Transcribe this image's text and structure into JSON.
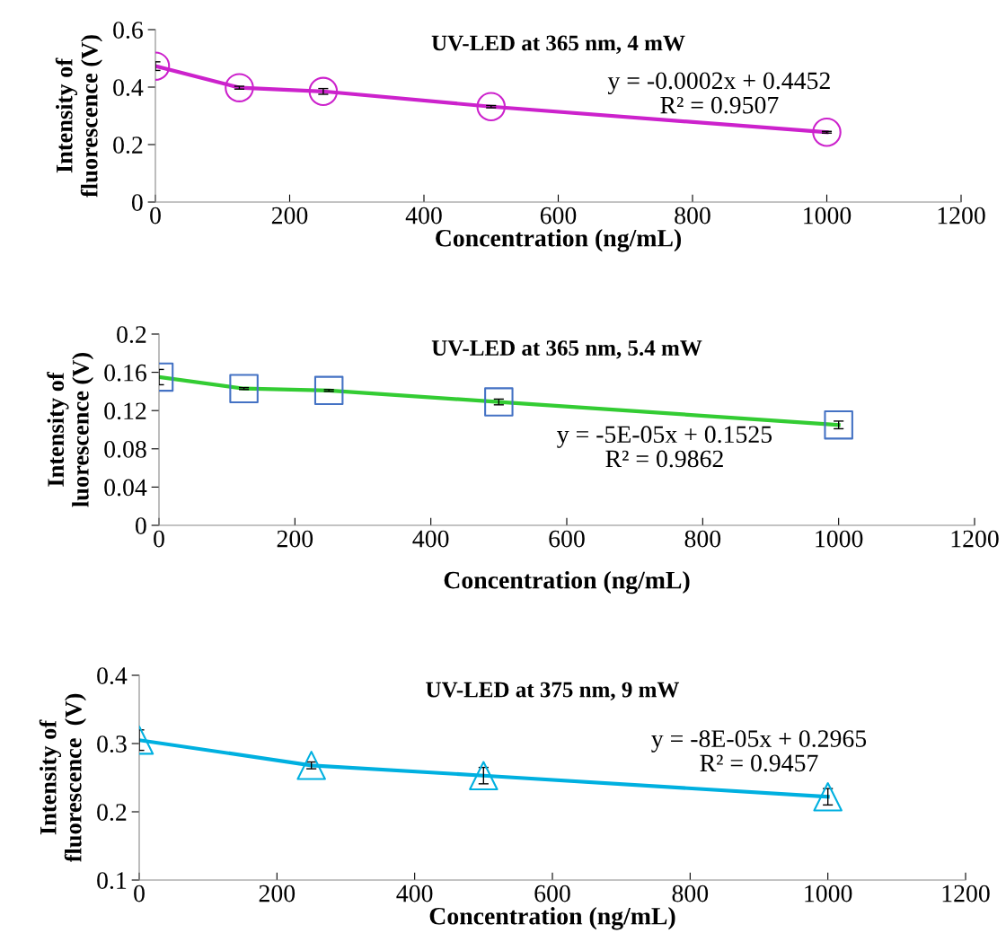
{
  "chart_data": [
    {
      "type": "line",
      "title": "UV-LED at 365 nm, 4 mW",
      "xlabel": "Concentration (ng/mL)",
      "ylabel": "Intensity of\nfluorescence (V)",
      "x": [
        0,
        125,
        250,
        500,
        1000
      ],
      "xlim": [
        0,
        1200
      ],
      "xticks": [
        0,
        200,
        400,
        600,
        800,
        1000,
        1200
      ],
      "ylim": [
        0,
        0.6
      ],
      "yticks": [
        0,
        0.2,
        0.4,
        0.6
      ],
      "grid": false,
      "legend": false,
      "annotations": [
        "y = -0.0002x + 0.4452\nR² = 0.9507"
      ],
      "series": [
        {
          "type": "line",
          "color": "#cc22cc",
          "marker": "none",
          "line_style": "solid",
          "values": [
            0.473,
            0.398,
            0.385,
            0.332,
            0.243
          ]
        },
        {
          "type": "scatter",
          "color": "#cc22cc",
          "marker": "circle",
          "values": [
            0.473,
            0.398,
            0.385,
            0.332,
            0.243
          ],
          "errors": [
            0.015,
            0.005,
            0.01,
            0.004,
            0.003
          ]
        }
      ]
    },
    {
      "type": "line",
      "title": "UV-LED at 365 nm, 5.4 mW",
      "xlabel": "Concentration (ng/mL)",
      "ylabel": "Intensity of\nluorescence (V)",
      "x": [
        0,
        125,
        250,
        500,
        1000
      ],
      "xlim": [
        0,
        1200
      ],
      "xticks": [
        0,
        200,
        400,
        600,
        800,
        1000,
        1200
      ],
      "ylim": [
        0,
        0.2
      ],
      "yticks": [
        0,
        0.04,
        0.08,
        0.12,
        0.16,
        0.2
      ],
      "grid": false,
      "legend": false,
      "annotations": [
        "y = -5E-05x + 0.1525\nR² = 0.9862"
      ],
      "series": [
        {
          "type": "line",
          "color": "#33cc33",
          "marker": "none",
          "line_style": "solid",
          "values": [
            0.155,
            0.143,
            0.141,
            0.129,
            0.105
          ]
        },
        {
          "type": "scatter",
          "color": "#4472c4",
          "marker": "square",
          "values": [
            0.155,
            0.143,
            0.141,
            0.129,
            0.105
          ],
          "errors": [
            0.008,
            0.001,
            0.001,
            0.003,
            0.004
          ]
        }
      ]
    },
    {
      "type": "line",
      "title": "UV-LED at 375 nm, 9 mW",
      "xlabel": "Concentration (ng/mL)",
      "ylabel": "Intensity of\nfluorescence  (V)",
      "x": [
        0,
        250,
        500,
        1000
      ],
      "xlim": [
        0,
        1200
      ],
      "xticks": [
        0,
        200,
        400,
        600,
        800,
        1000,
        1200
      ],
      "ylim": [
        0.1,
        0.4
      ],
      "yticks": [
        0.1,
        0.2,
        0.3,
        0.4
      ],
      "grid": false,
      "legend": false,
      "annotations": [
        "y = -8E-05x + 0.2965\nR² = 0.9457"
      ],
      "series": [
        {
          "type": "line",
          "color": "#00b0e0",
          "marker": "none",
          "line_style": "solid",
          "values": [
            0.305,
            0.268,
            0.253,
            0.222
          ]
        },
        {
          "type": "scatter",
          "color": "#00b0e0",
          "marker": "triangle",
          "values": [
            0.305,
            0.268,
            0.253,
            0.222
          ],
          "errors": [
            0.015,
            0.005,
            0.012,
            0.012
          ]
        }
      ]
    }
  ]
}
